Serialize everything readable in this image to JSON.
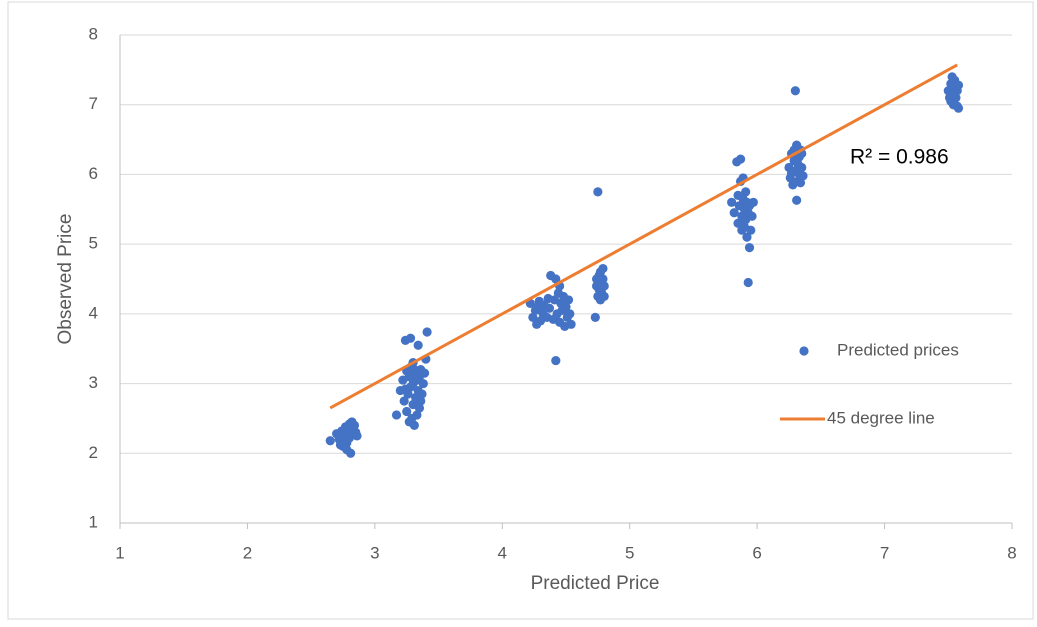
{
  "chart_data": {
    "type": "scatter",
    "x_label": "Predicted Price",
    "y_label": "Observed Price",
    "annotation": "R² = 0.986",
    "xlim": [
      1,
      8
    ],
    "xticks": [
      1,
      2,
      3,
      4,
      5,
      6,
      7,
      8
    ],
    "ylim": [
      1,
      8
    ],
    "yticks": [
      1,
      2,
      3,
      4,
      5,
      6,
      7,
      8
    ],
    "grid": true,
    "legend": "right",
    "series": [
      {
        "name": "Predicted prices",
        "type": "scatter",
        "color": "#4472c4",
        "x": [
          2.65,
          2.7,
          2.72,
          2.74,
          2.75,
          2.76,
          2.77,
          2.78,
          2.79,
          2.8,
          2.8,
          2.81,
          2.82,
          2.82,
          2.83,
          2.84,
          2.85,
          2.78,
          2.73,
          2.86,
          3.17,
          3.2,
          3.22,
          3.23,
          3.24,
          3.25,
          3.26,
          3.27,
          3.27,
          3.28,
          3.28,
          3.29,
          3.3,
          3.3,
          3.31,
          3.31,
          3.32,
          3.32,
          3.33,
          3.33,
          3.34,
          3.34,
          3.35,
          3.35,
          3.36,
          3.37,
          3.38,
          3.39,
          3.4,
          3.41,
          3.25,
          3.29,
          3.36,
          3.24,
          3.3,
          4.22,
          4.24,
          4.26,
          4.27,
          4.28,
          4.3,
          4.32,
          4.33,
          4.35,
          4.37,
          4.38,
          4.4,
          4.41,
          4.42,
          4.42,
          4.43,
          4.44,
          4.45,
          4.46,
          4.47,
          4.48,
          4.49,
          4.5,
          4.51,
          4.52,
          4.53,
          4.54,
          4.45,
          4.36,
          4.29,
          4.73,
          4.74,
          4.75,
          4.75,
          4.76,
          4.76,
          4.77,
          4.77,
          4.78,
          4.78,
          4.79,
          4.79,
          4.8,
          4.8,
          4.74,
          5.8,
          5.82,
          5.84,
          5.85,
          5.86,
          5.87,
          5.87,
          5.88,
          5.89,
          5.9,
          5.9,
          5.91,
          5.92,
          5.92,
          5.93,
          5.93,
          5.94,
          5.94,
          5.95,
          5.96,
          5.97,
          5.89,
          5.85,
          5.91,
          5.88,
          6.25,
          6.26,
          6.27,
          6.28,
          6.29,
          6.3,
          6.3,
          6.31,
          6.31,
          6.32,
          6.32,
          6.33,
          6.33,
          6.34,
          6.34,
          6.35,
          6.35,
          6.36,
          6.29,
          6.27,
          7.5,
          7.51,
          7.52,
          7.52,
          7.53,
          7.54,
          7.54,
          7.55,
          7.55,
          7.56,
          7.57,
          7.57,
          7.58,
          7.58,
          7.53
        ],
        "values": [
          2.18,
          2.28,
          2.2,
          2.32,
          2.1,
          2.25,
          2.38,
          2.15,
          2.3,
          2.22,
          2.42,
          2.0,
          2.35,
          2.45,
          2.28,
          2.4,
          2.3,
          2.05,
          2.12,
          2.25,
          2.55,
          2.9,
          3.05,
          2.75,
          3.62,
          2.6,
          2.85,
          3.1,
          2.45,
          3.65,
          2.95,
          3.25,
          2.7,
          3.0,
          2.4,
          3.2,
          2.8,
          3.15,
          2.55,
          3.05,
          2.9,
          3.55,
          3.1,
          2.65,
          3.2,
          2.85,
          3.0,
          3.15,
          3.35,
          3.74,
          3.18,
          2.5,
          2.75,
          2.92,
          3.3,
          4.15,
          3.95,
          4.05,
          3.85,
          4.1,
          3.9,
          4.0,
          4.12,
          3.95,
          4.08,
          4.55,
          3.92,
          4.2,
          3.33,
          4.5,
          4.0,
          4.3,
          3.88,
          4.15,
          4.05,
          4.25,
          3.82,
          4.1,
          3.95,
          4.2,
          4.0,
          3.85,
          4.4,
          4.22,
          4.18,
          3.95,
          4.4,
          5.75,
          4.25,
          4.55,
          4.35,
          4.2,
          4.6,
          4.45,
          4.3,
          4.5,
          4.65,
          4.25,
          4.4,
          4.5,
          5.6,
          5.45,
          6.18,
          5.3,
          5.55,
          5.9,
          6.22,
          5.4,
          5.65,
          5.25,
          5.5,
          5.35,
          5.6,
          5.1,
          4.45,
          5.45,
          4.95,
          5.55,
          5.2,
          5.4,
          5.6,
          5.95,
          5.7,
          5.75,
          5.2,
          6.1,
          5.95,
          6.3,
          5.85,
          6.2,
          7.2,
          6.05,
          5.63,
          6.42,
          6.15,
          5.9,
          6.25,
          6.0,
          6.35,
          5.88,
          6.1,
          6.3,
          5.98,
          6.35,
          6.02,
          7.2,
          7.1,
          7.3,
          7.05,
          7.4,
          7.15,
          7.0,
          7.25,
          7.35,
          7.1,
          6.98,
          7.2,
          6.95,
          7.28,
          7.18
        ]
      },
      {
        "name": "45 degree line",
        "type": "line",
        "color": "#ed7d31",
        "x": [
          2.65,
          7.57
        ],
        "values": [
          2.65,
          7.57
        ]
      }
    ]
  }
}
